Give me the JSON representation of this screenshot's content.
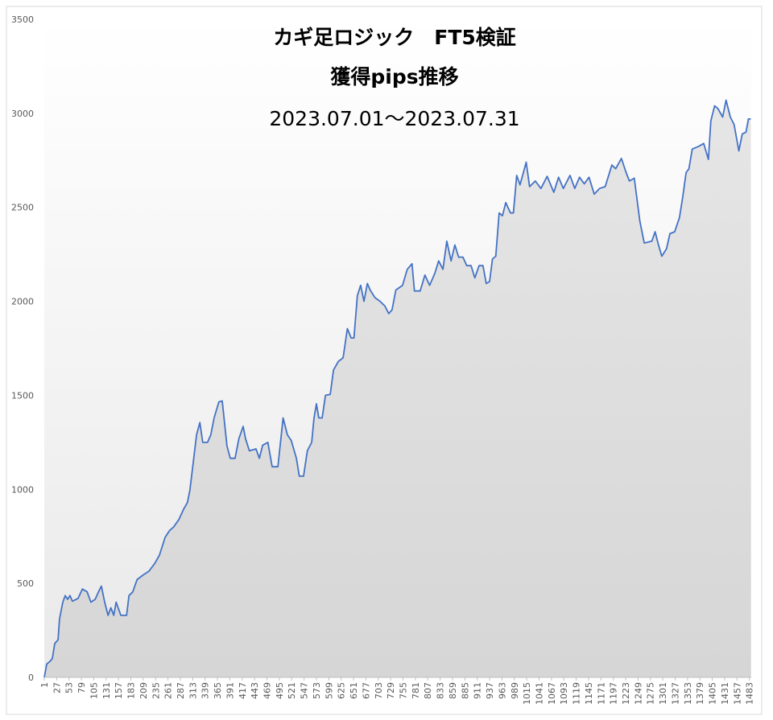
{
  "chart_data": {
    "type": "area",
    "title": [
      "カギ足ロジック　FT5検証",
      "獲得pips推移",
      "2023.07.01～2023.07.31"
    ],
    "x": [
      1,
      6,
      13,
      18,
      23,
      30,
      33,
      40,
      45,
      50,
      55,
      60,
      72,
      81,
      91,
      99,
      108,
      116,
      121,
      128,
      135,
      141,
      147,
      152,
      162,
      174,
      179,
      187,
      196,
      209,
      221,
      233,
      243,
      255,
      264,
      273,
      284,
      294,
      302,
      307,
      314,
      321,
      328,
      334,
      344,
      351,
      358,
      368,
      375,
      385,
      392,
      402,
      410,
      419,
      424,
      432,
      446,
      453,
      460,
      471,
      480,
      492,
      503,
      512,
      520,
      531,
      537,
      546,
      554,
      563,
      568,
      573,
      578,
      585,
      592,
      602,
      609,
      619,
      629,
      638,
      646,
      652,
      659,
      666,
      673,
      680,
      686,
      696,
      707,
      717,
      725,
      732,
      740,
      754,
      764,
      774,
      779,
      791,
      801,
      811,
      822,
      830,
      839,
      847,
      856,
      864,
      872,
      881,
      889,
      898,
      906,
      915,
      923,
      930,
      937,
      943,
      950,
      957,
      964,
      971,
      981,
      987,
      994,
      1001,
      1008,
      1014,
      1021,
      1033,
      1045,
      1058,
      1072,
      1082,
      1092,
      1106,
      1116,
      1126,
      1136,
      1146,
      1157,
      1168,
      1180,
      1194,
      1202,
      1214,
      1224,
      1231,
      1241,
      1253,
      1262,
      1278,
      1285,
      1292,
      1299,
      1309,
      1316,
      1326,
      1336,
      1343,
      1350,
      1356,
      1363,
      1377,
      1387,
      1397,
      1402,
      1410,
      1417,
      1427,
      1434,
      1443,
      1451,
      1461,
      1468,
      1476,
      1481,
      1486
    ],
    "values": [
      0,
      70,
      85,
      100,
      180,
      200,
      310,
      400,
      435,
      415,
      435,
      405,
      420,
      470,
      455,
      400,
      415,
      460,
      485,
      400,
      330,
      370,
      330,
      400,
      330,
      330,
      435,
      455,
      520,
      545,
      565,
      605,
      650,
      745,
      780,
      800,
      840,
      895,
      930,
      995,
      1140,
      1290,
      1355,
      1250,
      1250,
      1290,
      1380,
      1465,
      1470,
      1230,
      1165,
      1165,
      1270,
      1335,
      1270,
      1205,
      1215,
      1165,
      1235,
      1250,
      1120,
      1120,
      1380,
      1290,
      1260,
      1165,
      1070,
      1070,
      1205,
      1250,
      1380,
      1455,
      1380,
      1380,
      1500,
      1505,
      1635,
      1680,
      1700,
      1855,
      1805,
      1805,
      2030,
      2085,
      2000,
      2095,
      2060,
      2020,
      2000,
      1975,
      1935,
      1955,
      2060,
      2085,
      2170,
      2200,
      2055,
      2055,
      2140,
      2085,
      2150,
      2215,
      2170,
      2320,
      2215,
      2300,
      2235,
      2235,
      2190,
      2190,
      2125,
      2190,
      2190,
      2095,
      2105,
      2225,
      2240,
      2470,
      2455,
      2525,
      2470,
      2470,
      2670,
      2620,
      2685,
      2740,
      2610,
      2640,
      2600,
      2665,
      2580,
      2660,
      2600,
      2670,
      2600,
      2660,
      2625,
      2660,
      2570,
      2600,
      2610,
      2725,
      2705,
      2760,
      2685,
      2640,
      2655,
      2425,
      2310,
      2320,
      2370,
      2300,
      2240,
      2280,
      2360,
      2370,
      2445,
      2555,
      2685,
      2705,
      2810,
      2825,
      2840,
      2755,
      2960,
      3040,
      3025,
      2980,
      3070,
      2980,
      2940,
      2800,
      2890,
      2900,
      2970,
      2970
    ],
    "color": "#4472c4",
    "xlim": [
      1,
      1487
    ],
    "xticks": [
      1,
      27,
      53,
      79,
      105,
      131,
      157,
      183,
      209,
      235,
      261,
      287,
      313,
      339,
      365,
      391,
      417,
      443,
      469,
      495,
      521,
      547,
      573,
      599,
      625,
      651,
      677,
      703,
      729,
      755,
      781,
      807,
      833,
      859,
      885,
      911,
      937,
      963,
      989,
      1015,
      1041,
      1067,
      1093,
      1119,
      1145,
      1171,
      1197,
      1223,
      1249,
      1275,
      1301,
      1327,
      1353,
      1379,
      1405,
      1431,
      1457,
      1483
    ],
    "ylim": [
      0,
      3500
    ],
    "yticks": [
      0,
      500,
      1000,
      1500,
      2000,
      2500,
      3000,
      3500
    ],
    "grid": false
  }
}
